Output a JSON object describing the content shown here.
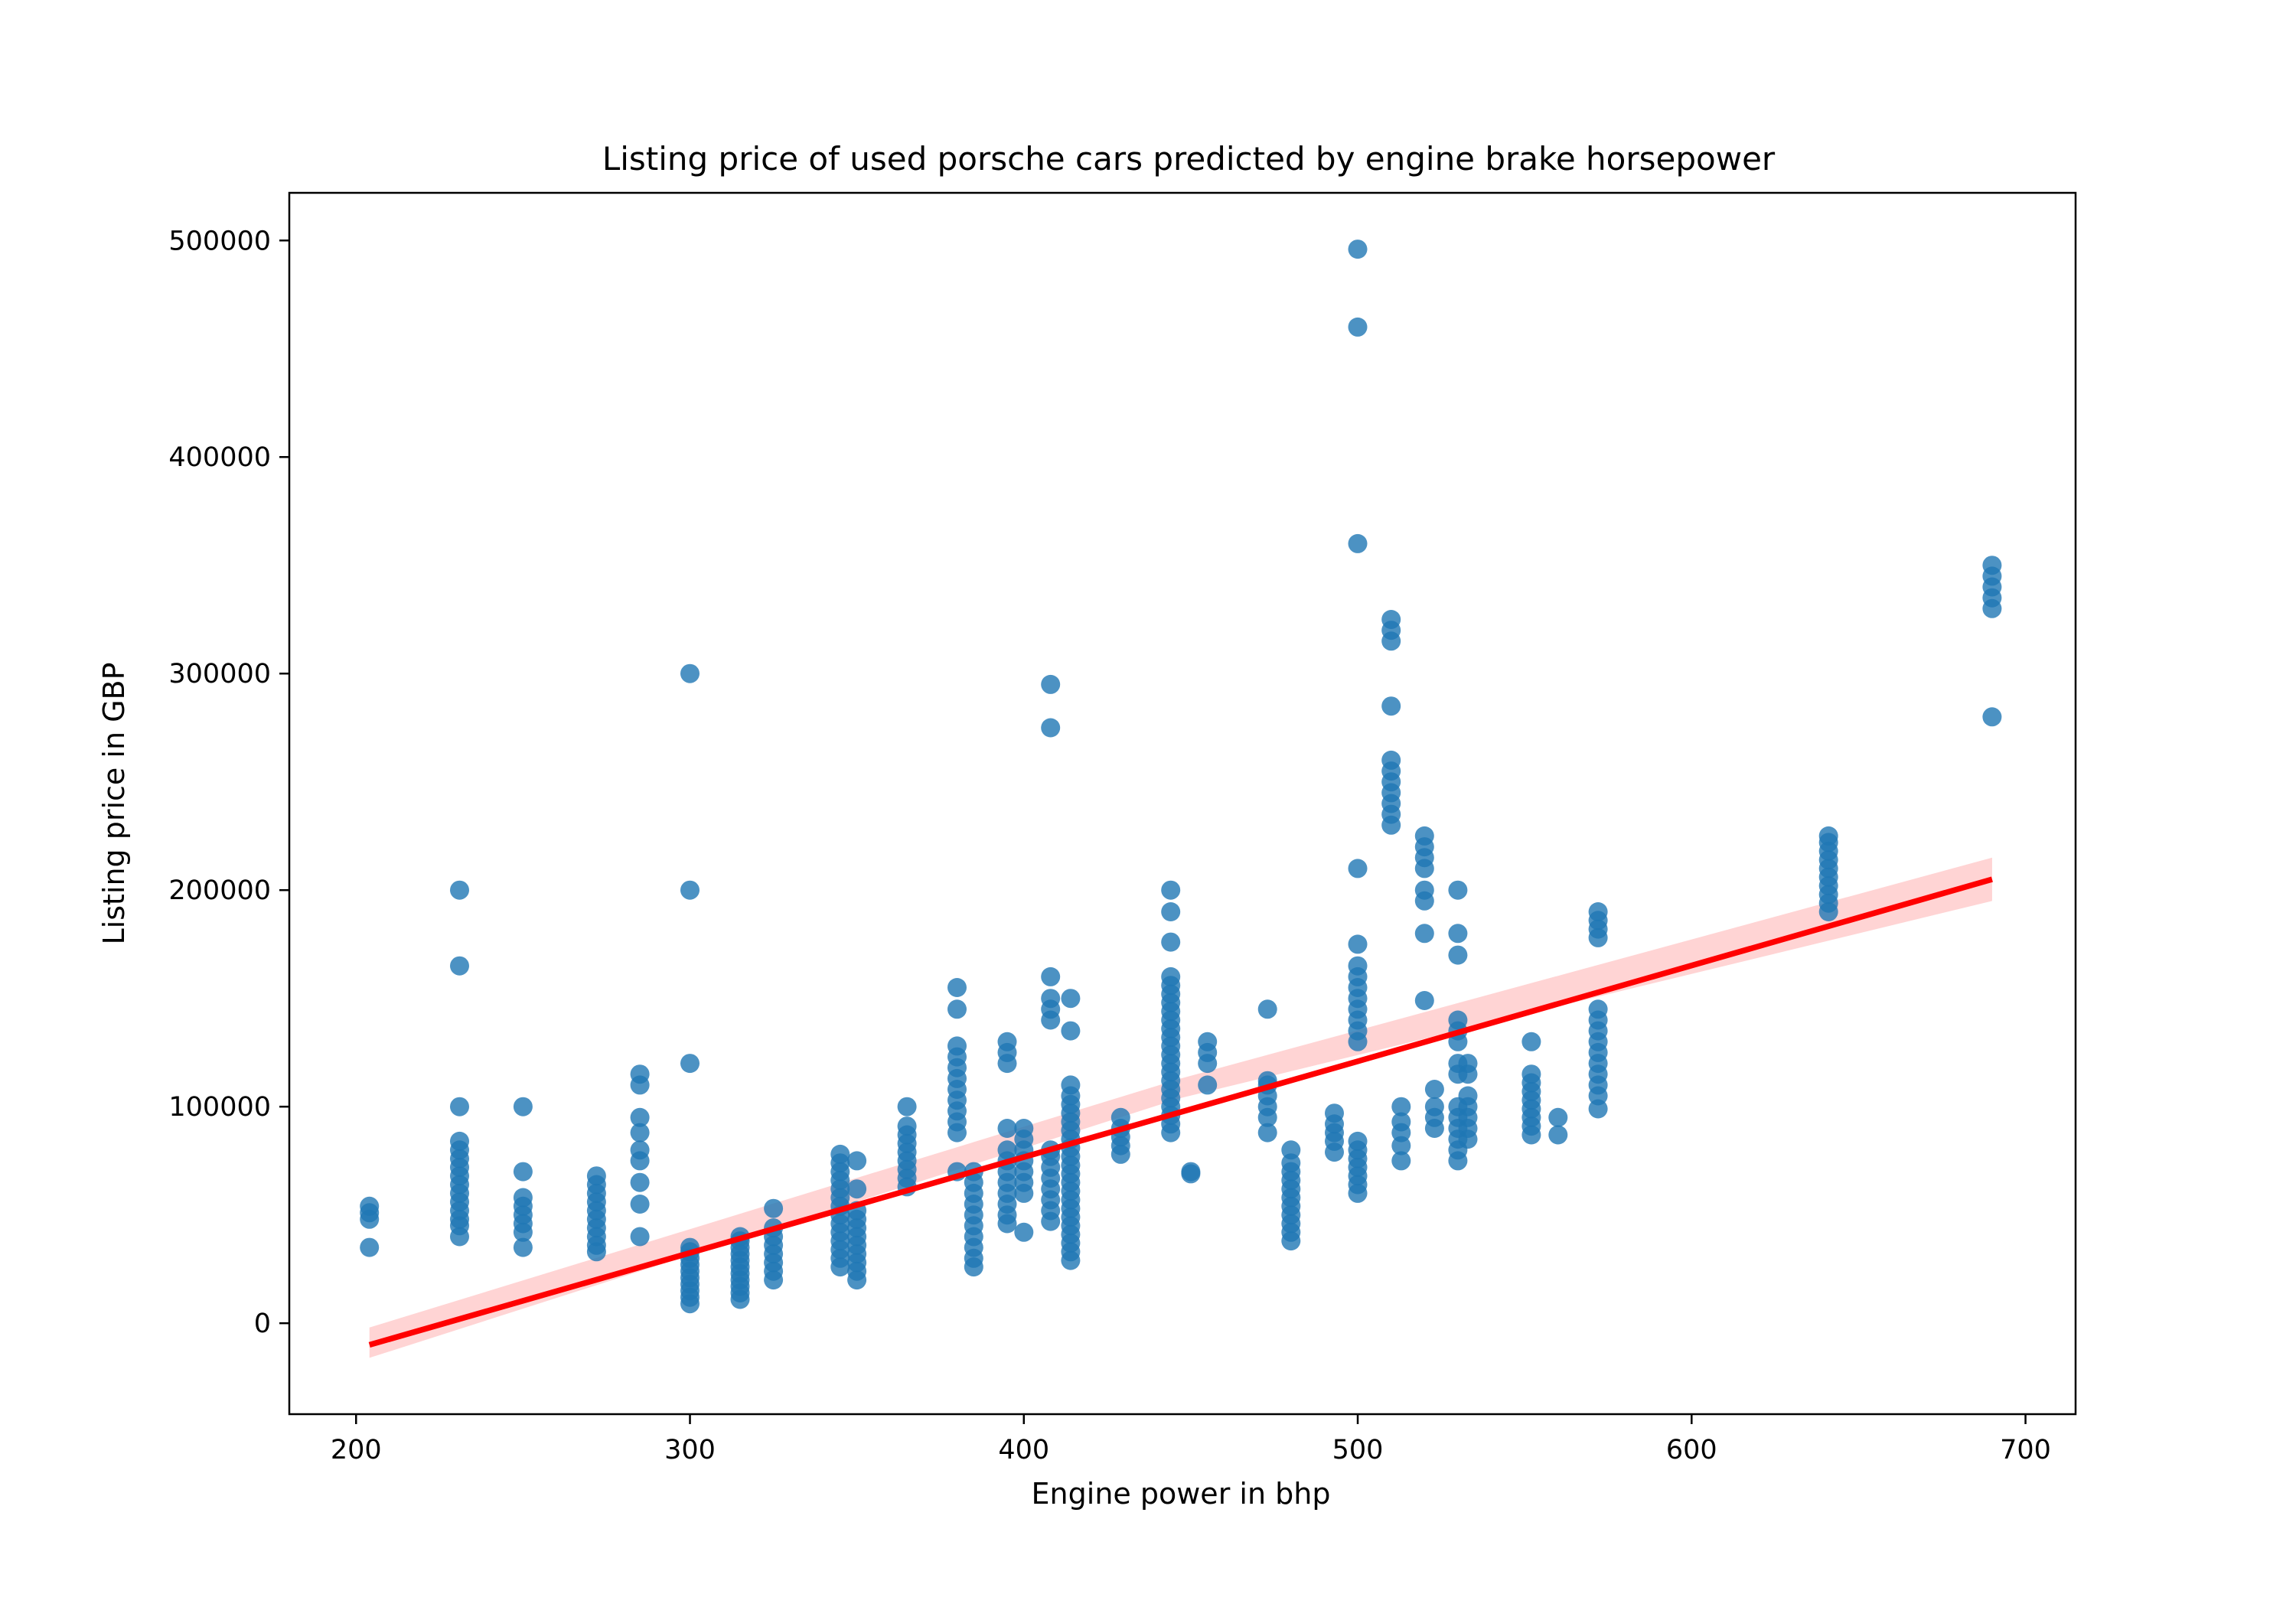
{
  "chart_data": {
    "type": "scatter",
    "title": "Listing price of used porsche cars predicted by engine brake horsepower",
    "xlabel": "Engine power in bhp",
    "ylabel": "Listing price in GBP",
    "xlim": [
      180,
      715
    ],
    "ylim": [
      -42000,
      522000
    ],
    "xticks": [
      200,
      300,
      400,
      500,
      600,
      700
    ],
    "yticks": [
      0,
      100000,
      200000,
      300000,
      400000,
      500000
    ],
    "grid": false,
    "legend": "none",
    "point_color": "#1f77b4",
    "fit_color": "#ff0000",
    "band_color": "#ffcccc",
    "groups": [
      {
        "x": 204,
        "y": [
          35000,
          48000,
          51000,
          54000
        ]
      },
      {
        "x": 231,
        "y": [
          40000,
          45000,
          48000,
          52000,
          56000,
          60000,
          64000,
          68000,
          72000,
          76000,
          80000,
          84000,
          100000,
          165000,
          200000
        ]
      },
      {
        "x": 250,
        "y": [
          35000,
          42000,
          46000,
          50000,
          54000,
          58000,
          70000,
          100000
        ]
      },
      {
        "x": 272,
        "y": [
          33000,
          36000,
          40000,
          44000,
          48000,
          52000,
          56000,
          60000,
          64000,
          68000
        ]
      },
      {
        "x": 285,
        "y": [
          40000,
          55000,
          65000,
          75000,
          80000,
          88000,
          95000,
          110000,
          115000
        ]
      },
      {
        "x": 300,
        "y": [
          9000,
          12000,
          15000,
          18000,
          21000,
          24000,
          27000,
          30000,
          33000,
          35000,
          120000,
          200000,
          300000
        ]
      },
      {
        "x": 315,
        "y": [
          11000,
          14000,
          17000,
          20000,
          23000,
          26000,
          29000,
          32000,
          35000,
          38000,
          40000
        ]
      },
      {
        "x": 325,
        "y": [
          20000,
          24000,
          28000,
          32000,
          36000,
          40000,
          44000,
          53000
        ]
      },
      {
        "x": 345,
        "y": [
          26000,
          30000,
          34000,
          38000,
          42000,
          46000,
          50000,
          54000,
          58000,
          62000,
          66000,
          70000,
          74000,
          78000
        ]
      },
      {
        "x": 350,
        "y": [
          20000,
          24000,
          28000,
          32000,
          36000,
          40000,
          44000,
          48000,
          52000,
          62000,
          75000
        ]
      },
      {
        "x": 365,
        "y": [
          63000,
          67000,
          71000,
          75000,
          79000,
          83000,
          87000,
          91000,
          100000
        ]
      },
      {
        "x": 380,
        "y": [
          70000,
          88000,
          93000,
          98000,
          103000,
          108000,
          113000,
          118000,
          123000,
          128000,
          145000,
          155000
        ]
      },
      {
        "x": 385,
        "y": [
          26000,
          30000,
          35000,
          40000,
          45000,
          50000,
          55000,
          60000,
          65000,
          70000
        ]
      },
      {
        "x": 395,
        "y": [
          46000,
          50000,
          55000,
          60000,
          65000,
          70000,
          75000,
          80000,
          90000,
          120000,
          125000,
          130000
        ]
      },
      {
        "x": 400,
        "y": [
          42000,
          60000,
          65000,
          70000,
          75000,
          80000,
          85000,
          90000
        ]
      },
      {
        "x": 408,
        "y": [
          47000,
          52000,
          57000,
          62000,
          67000,
          72000,
          77000,
          80000,
          140000,
          145000,
          150000,
          160000,
          275000,
          295000
        ]
      },
      {
        "x": 414,
        "y": [
          29000,
          33000,
          37000,
          41000,
          45000,
          49000,
          53000,
          57000,
          61000,
          65000,
          69000,
          73000,
          77000,
          81000,
          85000,
          89000,
          93000,
          97000,
          101000,
          105000,
          110000,
          135000,
          150000
        ]
      },
      {
        "x": 429,
        "y": [
          78000,
          82000,
          86000,
          90000,
          95000
        ]
      },
      {
        "x": 444,
        "y": [
          88000,
          92000,
          96000,
          100000,
          104000,
          108000,
          112000,
          116000,
          120000,
          124000,
          128000,
          132000,
          136000,
          140000,
          144000,
          148000,
          152000,
          156000,
          160000,
          176000,
          190000,
          200000
        ]
      },
      {
        "x": 450,
        "y": [
          69000,
          70000
        ]
      },
      {
        "x": 455,
        "y": [
          110000,
          120000,
          125000,
          130000
        ]
      },
      {
        "x": 473,
        "y": [
          88000,
          95000,
          100000,
          105000,
          110000,
          112000,
          145000
        ]
      },
      {
        "x": 480,
        "y": [
          38000,
          42000,
          46000,
          50000,
          54000,
          58000,
          62000,
          66000,
          70000,
          74000,
          80000
        ]
      },
      {
        "x": 493,
        "y": [
          79000,
          84000,
          88000,
          92000,
          97000
        ]
      },
      {
        "x": 500,
        "y": [
          60000,
          64000,
          68000,
          72000,
          76000,
          80000,
          84000,
          130000,
          135000,
          140000,
          145000,
          150000,
          155000,
          160000,
          165000,
          175000,
          210000,
          360000,
          460000,
          496000
        ]
      },
      {
        "x": 510,
        "y": [
          230000,
          235000,
          240000,
          245000,
          250000,
          255000,
          260000,
          285000,
          315000,
          320000,
          325000
        ]
      },
      {
        "x": 513,
        "y": [
          75000,
          82000,
          88000,
          93000,
          100000
        ]
      },
      {
        "x": 520,
        "y": [
          149000,
          180000,
          195000,
          200000,
          210000,
          215000,
          220000,
          225000
        ]
      },
      {
        "x": 523,
        "y": [
          90000,
          95000,
          100000,
          108000
        ]
      },
      {
        "x": 530,
        "y": [
          75000,
          80000,
          85000,
          90000,
          95000,
          100000,
          115000,
          120000,
          130000,
          135000,
          140000,
          170000,
          180000,
          200000
        ]
      },
      {
        "x": 533,
        "y": [
          85000,
          90000,
          95000,
          100000,
          105000,
          115000,
          120000
        ]
      },
      {
        "x": 552,
        "y": [
          87000,
          91000,
          95000,
          99000,
          103000,
          107000,
          111000,
          115000,
          130000
        ]
      },
      {
        "x": 560,
        "y": [
          87000,
          95000
        ]
      },
      {
        "x": 572,
        "y": [
          99000,
          105000,
          110000,
          115000,
          120000,
          125000,
          130000,
          135000,
          140000,
          145000,
          178000,
          182000,
          186000,
          190000
        ]
      },
      {
        "x": 641,
        "y": [
          190000,
          194000,
          198000,
          202000,
          206000,
          210000,
          214000,
          218000,
          222000,
          225000
        ]
      },
      {
        "x": 690,
        "y": [
          280000,
          330000,
          335000,
          340000,
          345000,
          350000
        ]
      }
    ],
    "fit_line": {
      "x": [
        204,
        690
      ],
      "y": [
        -10000,
        205000
      ]
    },
    "confidence_band": {
      "x": [
        204,
        447,
        690
      ],
      "y_upper": [
        -2000,
        113000,
        215000
      ],
      "y_lower": [
        -16000,
        104000,
        195000
      ]
    }
  }
}
